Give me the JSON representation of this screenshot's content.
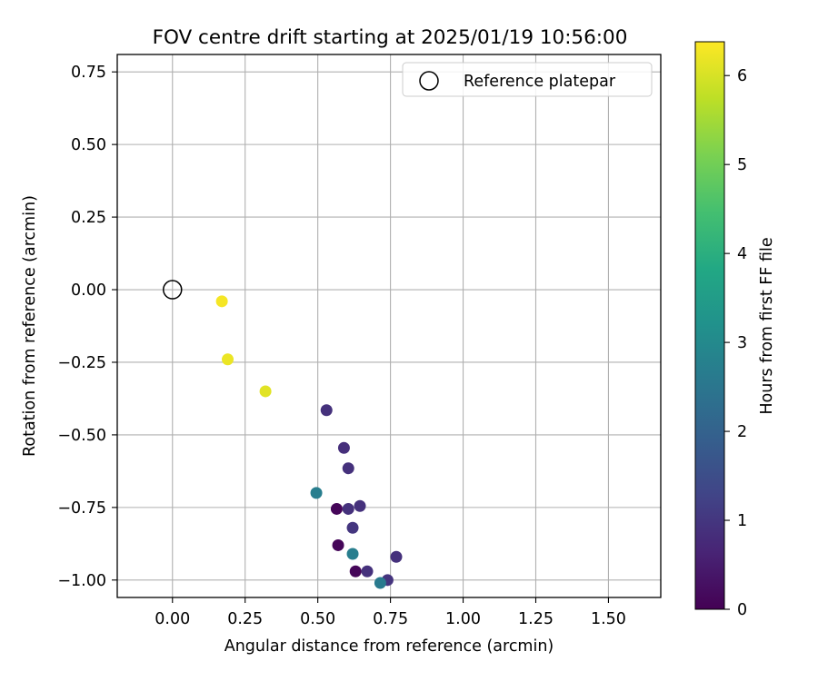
{
  "chart_data": {
    "type": "scatter",
    "title": "FOV centre drift starting at 2025/01/19 10:56:00",
    "xlabel": "Angular distance from reference (arcmin)",
    "ylabel": "Rotation from reference (arcmin)",
    "xlim": [
      -0.19,
      1.68
    ],
    "ylim": [
      -1.06,
      0.81
    ],
    "xticks": [
      0.0,
      0.25,
      0.5,
      0.75,
      1.0,
      1.25,
      1.5
    ],
    "xtick_labels": [
      "0.00",
      "0.25",
      "0.50",
      "0.75",
      "1.00",
      "1.25",
      "1.50"
    ],
    "yticks": [
      0.75,
      0.5,
      0.25,
      0.0,
      -0.25,
      -0.5,
      -0.75,
      -1.0
    ],
    "ytick_labels": [
      "0.75",
      "0.50",
      "0.25",
      "0.00",
      "−0.25",
      "−0.50",
      "−0.75",
      "−1.00"
    ],
    "grid": true,
    "legend": {
      "location": "top-right",
      "entries": [
        "Reference platepar"
      ]
    },
    "reference_point": {
      "name": "Reference platepar",
      "x": 0.0,
      "y": 0.0,
      "marker": "open-circle"
    },
    "colorbar": {
      "label": "Hours from first FF file",
      "colormap": "viridis",
      "range": [
        0,
        6.38
      ],
      "ticks": [
        0,
        1,
        2,
        3,
        4,
        5,
        6
      ],
      "tick_labels": [
        "0",
        "1",
        "2",
        "3",
        "4",
        "5",
        "6"
      ]
    },
    "points": [
      {
        "x": 0.17,
        "y": -0.04,
        "hours": 6.3
      },
      {
        "x": 0.19,
        "y": -0.24,
        "hours": 6.2
      },
      {
        "x": 0.32,
        "y": -0.35,
        "hours": 6.1
      },
      {
        "x": 0.53,
        "y": -0.415,
        "hours": 0.9
      },
      {
        "x": 0.59,
        "y": -0.545,
        "hours": 0.85
      },
      {
        "x": 0.605,
        "y": -0.615,
        "hours": 0.9
      },
      {
        "x": 0.495,
        "y": -0.7,
        "hours": 2.7
      },
      {
        "x": 0.565,
        "y": -0.755,
        "hours": 0.1
      },
      {
        "x": 0.605,
        "y": -0.755,
        "hours": 0.9
      },
      {
        "x": 0.645,
        "y": -0.745,
        "hours": 0.9
      },
      {
        "x": 0.62,
        "y": -0.82,
        "hours": 1.0
      },
      {
        "x": 0.57,
        "y": -0.88,
        "hours": 0.1
      },
      {
        "x": 0.62,
        "y": -0.91,
        "hours": 2.7
      },
      {
        "x": 0.77,
        "y": -0.92,
        "hours": 0.9
      },
      {
        "x": 0.63,
        "y": -0.97,
        "hours": 0.1
      },
      {
        "x": 0.67,
        "y": -0.97,
        "hours": 0.9
      },
      {
        "x": 0.74,
        "y": -1.0,
        "hours": 0.95
      },
      {
        "x": 0.715,
        "y": -1.01,
        "hours": 2.6
      }
    ]
  }
}
